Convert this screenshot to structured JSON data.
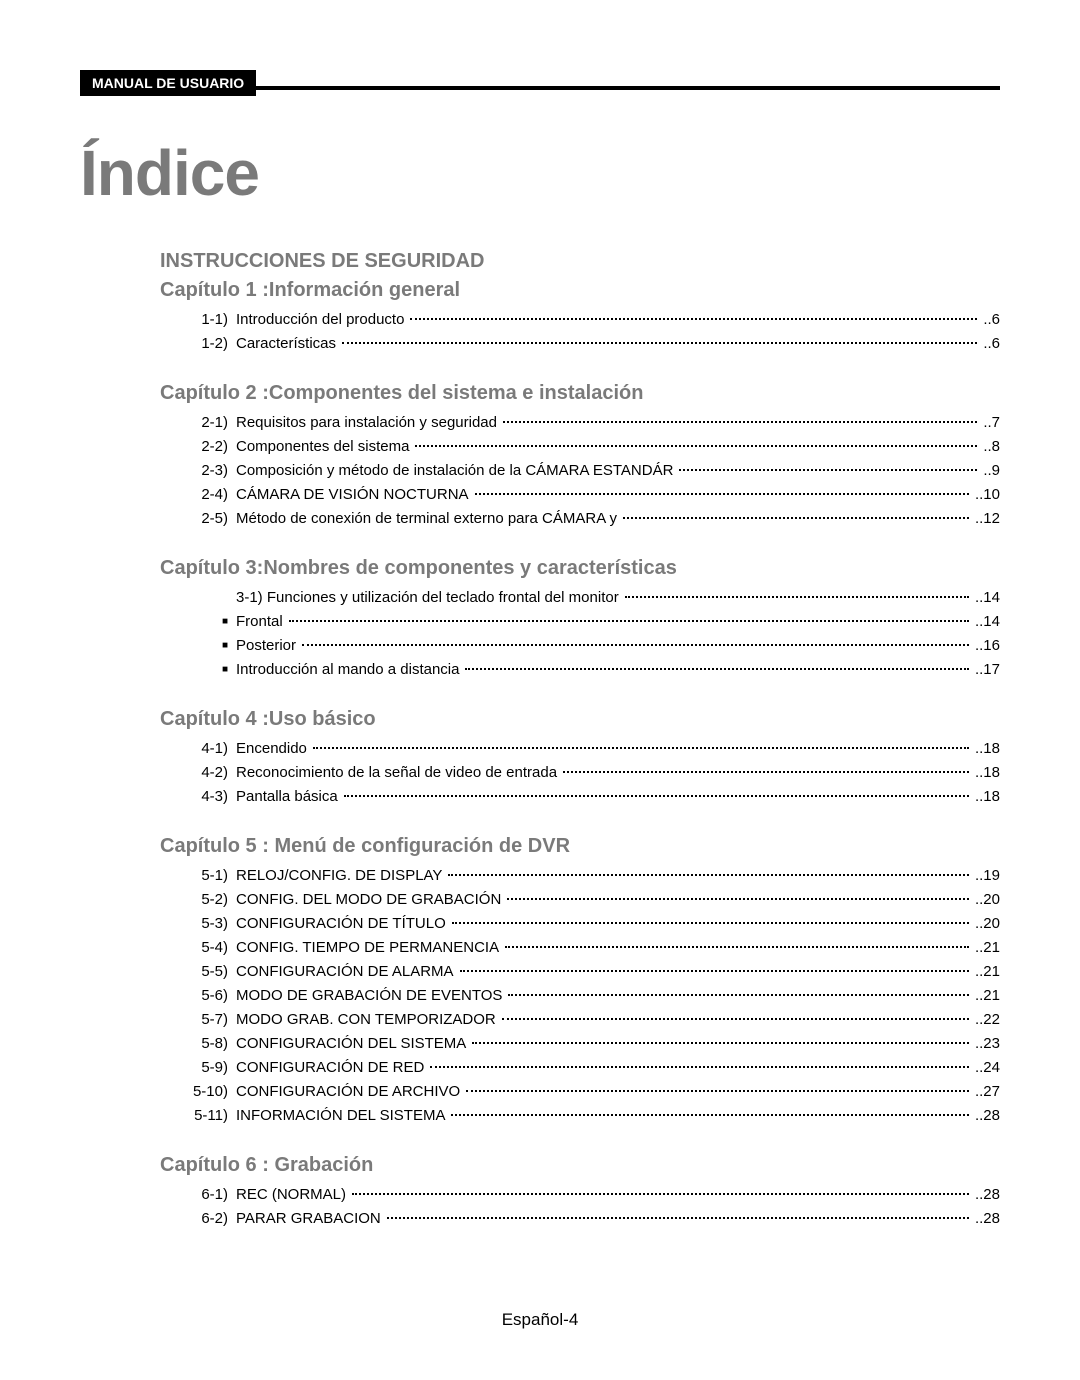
{
  "header_label": "MANUAL DE USUARIO",
  "title": "Índice",
  "footer": "Español-4",
  "colors": {
    "heading_gray": "#7a7a7a",
    "text_black": "#000000",
    "bg": "#ffffff"
  },
  "typography": {
    "title_fontsize": 64,
    "heading_fontsize": 20,
    "entry_fontsize": 15,
    "footer_fontsize": 17,
    "font_family": "Arial"
  },
  "sections": [
    {
      "heading": "INSTRUCCIONES DE SEGURIDAD",
      "sub_heading": "Capítulo 1 :Información general",
      "entries": [
        {
          "num": "1-1)",
          "text": "Introducción del producto",
          "page": "..6"
        },
        {
          "num": "1-2)",
          "text": "Características",
          "page": "..6"
        }
      ]
    },
    {
      "heading": "Capítulo 2 :Componentes del sistema e instalación",
      "entries": [
        {
          "num": "2-1)",
          "text": "Requisitos para instalación y seguridad",
          "page": "..7"
        },
        {
          "num": "2-2)",
          "text": "Componentes del sistema",
          "page": "..8"
        },
        {
          "num": "2-3)",
          "text": "Composición y método de instalación de la CÁMARA ESTANDÁR",
          "page": "..9"
        },
        {
          "num": "2-4)",
          "text": "CÁMARA DE VISIÓN NOCTURNA",
          "page": "..10"
        },
        {
          "num": "2-5)",
          "text": "Método de conexión de terminal externo para CÁMARA y",
          "page": "..12"
        }
      ]
    },
    {
      "heading": "Capítulo 3:Nombres de componentes y características",
      "entries": [
        {
          "num": "",
          "indent": true,
          "text": "3-1) Funciones y utilización del teclado frontal del monitor",
          "page": "..14"
        },
        {
          "bullet": true,
          "text": "Frontal",
          "page": "..14"
        },
        {
          "bullet": true,
          "text": "Posterior",
          "page": "..16"
        },
        {
          "bullet": true,
          "text": "Introducción al mando a  distancia",
          "page": "..17"
        }
      ]
    },
    {
      "heading": "Capítulo 4 :Uso básico",
      "entries": [
        {
          "num": "4-1)",
          "text": "Encendido",
          "page": "..18"
        },
        {
          "num": "4-2)",
          "text": "Reconocimiento de la señal de video de entrada",
          "page": "..18"
        },
        {
          "num": "4-3)",
          "text": "Pantalla básica",
          "page": "..18"
        }
      ]
    },
    {
      "heading": "Capítulo 5 : Menú de configuración de DVR",
      "entries": [
        {
          "num": "5-1)",
          "text": "RELOJ/CONFIG. DE DISPLAY",
          "page": "..19"
        },
        {
          "num": "5-2)",
          "text": "CONFIG. DEL MODO DE GRABACIÓN",
          "page": "..20"
        },
        {
          "num": "5-3)",
          "text": "CONFIGURACIÓN DE TÍTULO",
          "page": "..20"
        },
        {
          "num": "5-4)",
          "text": "CONFIG. TIEMPO DE PERMANENCIA",
          "page": "..21"
        },
        {
          "num": "5-5)",
          "text": "CONFIGURACIÓN DE ALARMA",
          "page": "..21"
        },
        {
          "num": "5-6)",
          "text": "MODO DE GRABACIÓN DE EVENTOS",
          "page": "..21"
        },
        {
          "num": "5-7)",
          "text": "MODO GRAB. CON TEMPORIZADOR",
          "page": "..22"
        },
        {
          "num": "5-8)",
          "text": "CONFIGURACIÓN DEL SISTEMA",
          "page": "..23"
        },
        {
          "num": "5-9)",
          "text": "CONFIGURACIÓN DE RED",
          "page": "..24"
        },
        {
          "num": "5-10)",
          "text": "CONFIGURACIÓN DE ARCHIVO",
          "page": "..27"
        },
        {
          "num": "5-11)",
          "text": "INFORMACIÓN DEL SISTEMA",
          "page": "..28"
        }
      ]
    },
    {
      "heading": "Capítulo 6 : Grabación",
      "entries": [
        {
          "num": "6-1)",
          "text": "REC (NORMAL)",
          "page": "..28"
        },
        {
          "num": "6-2)",
          "text": "PARAR GRABACION",
          "page": "..28"
        }
      ]
    }
  ]
}
